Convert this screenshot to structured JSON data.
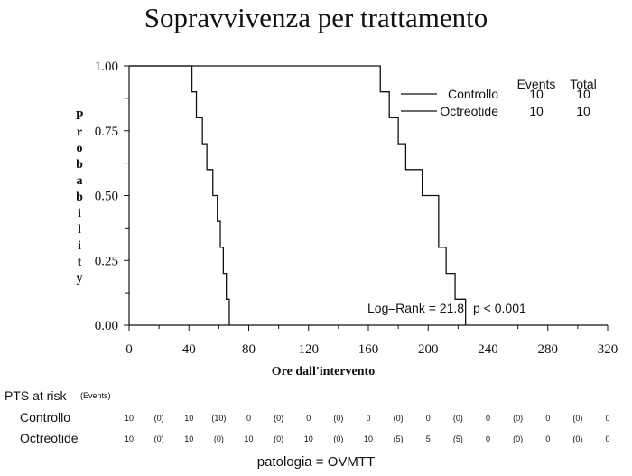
{
  "chart_data": {
    "type": "line",
    "title": "Sopravvivenza per trattamento",
    "xlabel": "Ore dall'intervento",
    "ylabel": "Probability",
    "xlim": [
      0,
      320
    ],
    "ylim": [
      0,
      1
    ],
    "xticks": [
      "0",
      "40",
      "80",
      "120",
      "160",
      "200",
      "240",
      "280",
      "320"
    ],
    "yticks": [
      "0.00",
      "0.25",
      "0.50",
      "0.75",
      "1.00"
    ],
    "grid": false,
    "legend_headers": [
      "Events",
      "Total"
    ],
    "series": [
      {
        "name": "Controllo",
        "events": "10",
        "total": "10",
        "steps": [
          [
            0,
            1.0
          ],
          [
            42,
            0.9
          ],
          [
            45,
            0.8
          ],
          [
            49,
            0.7
          ],
          [
            52,
            0.6
          ],
          [
            56,
            0.5
          ],
          [
            59,
            0.4
          ],
          [
            61,
            0.3
          ],
          [
            63,
            0.2
          ],
          [
            65,
            0.1
          ],
          [
            67,
            0.0
          ]
        ]
      },
      {
        "name": "Octreotide",
        "events": "10",
        "total": "10",
        "steps": [
          [
            0,
            1.0
          ],
          [
            168,
            0.9
          ],
          [
            174,
            0.8
          ],
          [
            180,
            0.7
          ],
          [
            185,
            0.6
          ],
          [
            196,
            0.5
          ],
          [
            207,
            0.3
          ],
          [
            212,
            0.2
          ],
          [
            218,
            0.1
          ],
          [
            225,
            0.0
          ]
        ]
      }
    ],
    "annotation": {
      "logrank": "Log–Rank = 21.8",
      "p_value": "p < 0.001"
    }
  },
  "risk_table": {
    "title": "PTS at risk",
    "events_label": "(Events)",
    "rows": [
      {
        "label": "Controllo",
        "values": [
          "10",
          "(0)",
          "10",
          "(10)",
          "0",
          "(0)",
          "0",
          "(0)",
          "0",
          "(0)",
          "0",
          "(0)",
          "0",
          "(0)",
          "0",
          "(0)",
          "0"
        ]
      },
      {
        "label": "Octreotide",
        "values": [
          "10",
          "(0)",
          "10",
          "(0)",
          "10",
          "(0)",
          "10",
          "(0)",
          "10",
          "(5)",
          "5",
          "(5)",
          "0",
          "(0)",
          "0",
          "(0)",
          "0"
        ]
      }
    ]
  },
  "footer": "patologia = OVMTT"
}
